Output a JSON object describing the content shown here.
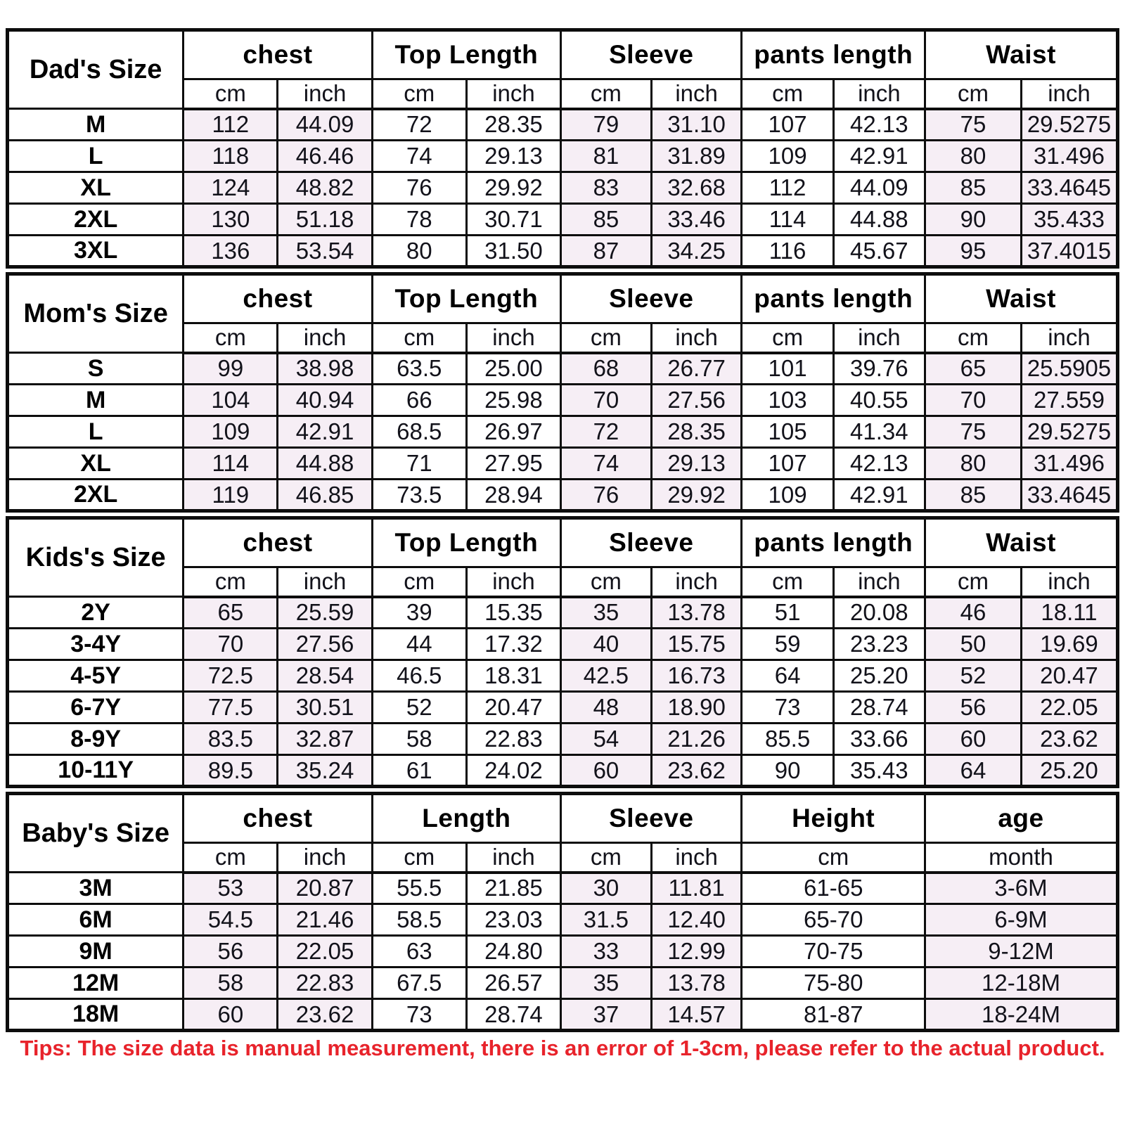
{
  "colors": {
    "shaded_cell": "#f6eef5",
    "border": "#0d0d0d",
    "tip_text": "#e8232b"
  },
  "tip": "Tips: The size data is manual measurement, there is an error of 1-3cm, please refer to the actual product.",
  "sections": [
    {
      "label": "Dad's Size",
      "columns": [
        {
          "label": "chest",
          "sub": [
            "cm",
            "inch"
          ],
          "shaded": true
        },
        {
          "label": "Top Length",
          "sub": [
            "cm",
            "inch"
          ],
          "shaded": false
        },
        {
          "label": "Sleeve",
          "sub": [
            "cm",
            "inch"
          ],
          "shaded": true
        },
        {
          "label": "pants length",
          "sub": [
            "cm",
            "inch"
          ],
          "shaded": false
        },
        {
          "label": "Waist",
          "sub": [
            "cm",
            "inch"
          ],
          "shaded": true
        }
      ],
      "rows": [
        {
          "size": "M",
          "values": [
            "112",
            "44.09",
            "72",
            "28.35",
            "79",
            "31.10",
            "107",
            "42.13",
            "75",
            "29.5275"
          ]
        },
        {
          "size": "L",
          "values": [
            "118",
            "46.46",
            "74",
            "29.13",
            "81",
            "31.89",
            "109",
            "42.91",
            "80",
            "31.496"
          ]
        },
        {
          "size": "XL",
          "values": [
            "124",
            "48.82",
            "76",
            "29.92",
            "83",
            "32.68",
            "112",
            "44.09",
            "85",
            "33.4645"
          ]
        },
        {
          "size": "2XL",
          "values": [
            "130",
            "51.18",
            "78",
            "30.71",
            "85",
            "33.46",
            "114",
            "44.88",
            "90",
            "35.433"
          ]
        },
        {
          "size": "3XL",
          "values": [
            "136",
            "53.54",
            "80",
            "31.50",
            "87",
            "34.25",
            "116",
            "45.67",
            "95",
            "37.4015"
          ]
        }
      ]
    },
    {
      "label": "Mom's Size",
      "columns": [
        {
          "label": "chest",
          "sub": [
            "cm",
            "inch"
          ],
          "shaded": true
        },
        {
          "label": "Top Length",
          "sub": [
            "cm",
            "inch"
          ],
          "shaded": false
        },
        {
          "label": "Sleeve",
          "sub": [
            "cm",
            "inch"
          ],
          "shaded": true
        },
        {
          "label": "pants length",
          "sub": [
            "cm",
            "inch"
          ],
          "shaded": false
        },
        {
          "label": "Waist",
          "sub": [
            "cm",
            "inch"
          ],
          "shaded": true
        }
      ],
      "rows": [
        {
          "size": "S",
          "values": [
            "99",
            "38.98",
            "63.5",
            "25.00",
            "68",
            "26.77",
            "101",
            "39.76",
            "65",
            "25.5905"
          ]
        },
        {
          "size": "M",
          "values": [
            "104",
            "40.94",
            "66",
            "25.98",
            "70",
            "27.56",
            "103",
            "40.55",
            "70",
            "27.559"
          ]
        },
        {
          "size": "L",
          "values": [
            "109",
            "42.91",
            "68.5",
            "26.97",
            "72",
            "28.35",
            "105",
            "41.34",
            "75",
            "29.5275"
          ]
        },
        {
          "size": "XL",
          "values": [
            "114",
            "44.88",
            "71",
            "27.95",
            "74",
            "29.13",
            "107",
            "42.13",
            "80",
            "31.496"
          ]
        },
        {
          "size": "2XL",
          "values": [
            "119",
            "46.85",
            "73.5",
            "28.94",
            "76",
            "29.92",
            "109",
            "42.91",
            "85",
            "33.4645"
          ]
        }
      ]
    },
    {
      "label": "Kids's Size",
      "columns": [
        {
          "label": "chest",
          "sub": [
            "cm",
            "inch"
          ],
          "shaded": true
        },
        {
          "label": "Top Length",
          "sub": [
            "cm",
            "inch"
          ],
          "shaded": false
        },
        {
          "label": "Sleeve",
          "sub": [
            "cm",
            "inch"
          ],
          "shaded": true
        },
        {
          "label": "pants length",
          "sub": [
            "cm",
            "inch"
          ],
          "shaded": false
        },
        {
          "label": "Waist",
          "sub": [
            "cm",
            "inch"
          ],
          "shaded": true
        }
      ],
      "rows": [
        {
          "size": "2Y",
          "values": [
            "65",
            "25.59",
            "39",
            "15.35",
            "35",
            "13.78",
            "51",
            "20.08",
            "46",
            "18.11"
          ]
        },
        {
          "size": "3-4Y",
          "values": [
            "70",
            "27.56",
            "44",
            "17.32",
            "40",
            "15.75",
            "59",
            "23.23",
            "50",
            "19.69"
          ]
        },
        {
          "size": "4-5Y",
          "values": [
            "72.5",
            "28.54",
            "46.5",
            "18.31",
            "42.5",
            "16.73",
            "64",
            "25.20",
            "52",
            "20.47"
          ]
        },
        {
          "size": "6-7Y",
          "values": [
            "77.5",
            "30.51",
            "52",
            "20.47",
            "48",
            "18.90",
            "73",
            "28.74",
            "56",
            "22.05"
          ]
        },
        {
          "size": "8-9Y",
          "values": [
            "83.5",
            "32.87",
            "58",
            "22.83",
            "54",
            "21.26",
            "85.5",
            "33.66",
            "60",
            "23.62"
          ]
        },
        {
          "size": "10-11Y",
          "values": [
            "89.5",
            "35.24",
            "61",
            "24.02",
            "60",
            "23.62",
            "90",
            "35.43",
            "64",
            "25.20"
          ]
        }
      ]
    },
    {
      "label": "Baby's Size",
      "columns": [
        {
          "label": "chest",
          "sub": [
            "cm",
            "inch"
          ],
          "shaded": true
        },
        {
          "label": "Length",
          "sub": [
            "cm",
            "inch"
          ],
          "shaded": false
        },
        {
          "label": "Sleeve",
          "sub": [
            "cm",
            "inch"
          ],
          "shaded": true
        },
        {
          "label": "Height",
          "sub": [
            "cm"
          ],
          "shaded": false
        },
        {
          "label": "age",
          "sub": [
            "month"
          ],
          "shaded": true
        }
      ],
      "rows": [
        {
          "size": "3M",
          "values": [
            "53",
            "20.87",
            "55.5",
            "21.85",
            "30",
            "11.81",
            "61-65",
            "3-6M"
          ]
        },
        {
          "size": "6M",
          "values": [
            "54.5",
            "21.46",
            "58.5",
            "23.03",
            "31.5",
            "12.40",
            "65-70",
            "6-9M"
          ]
        },
        {
          "size": "9M",
          "values": [
            "56",
            "22.05",
            "63",
            "24.80",
            "33",
            "12.99",
            "70-75",
            "9-12M"
          ]
        },
        {
          "size": "12M",
          "values": [
            "58",
            "22.83",
            "67.5",
            "26.57",
            "35",
            "13.78",
            "75-80",
            "12-18M"
          ]
        },
        {
          "size": "18M",
          "values": [
            "60",
            "23.62",
            "73",
            "28.74",
            "37",
            "14.57",
            "81-87",
            "18-24M"
          ]
        }
      ]
    }
  ]
}
